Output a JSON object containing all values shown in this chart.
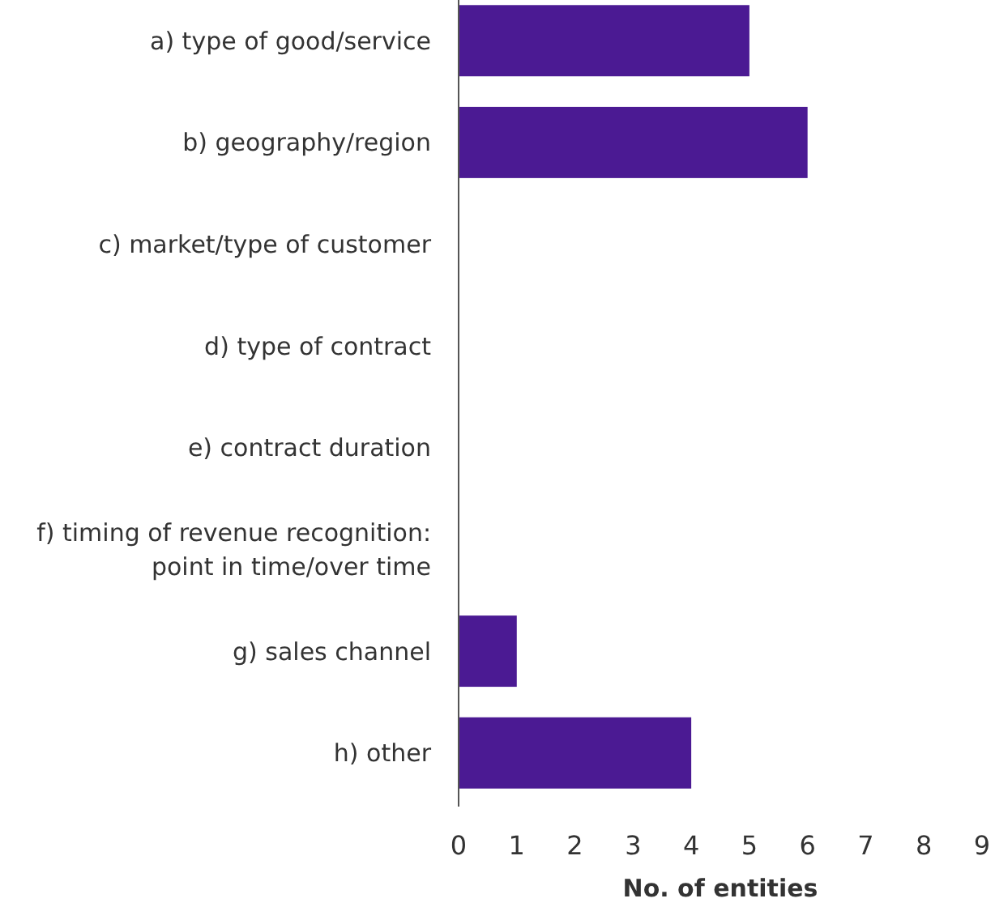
{
  "chart_data": {
    "type": "bar",
    "orientation": "horizontal",
    "xlabel": "No. of entities",
    "categories": [
      "a) type of good/service",
      "b) geography/region",
      "c) market/type of customer",
      "d) type of contract",
      "e) contract duration",
      "f) timing of revenue recognition: point in time/over time",
      "g) sales channel",
      "h) other"
    ],
    "values": [
      5,
      6,
      0,
      0,
      0,
      0,
      1,
      4
    ],
    "color": "#4b1a93",
    "xlim": [
      0,
      9
    ],
    "xticks": [
      0,
      1,
      2,
      3,
      4,
      5,
      6,
      7,
      8,
      9
    ],
    "grid": false
  }
}
